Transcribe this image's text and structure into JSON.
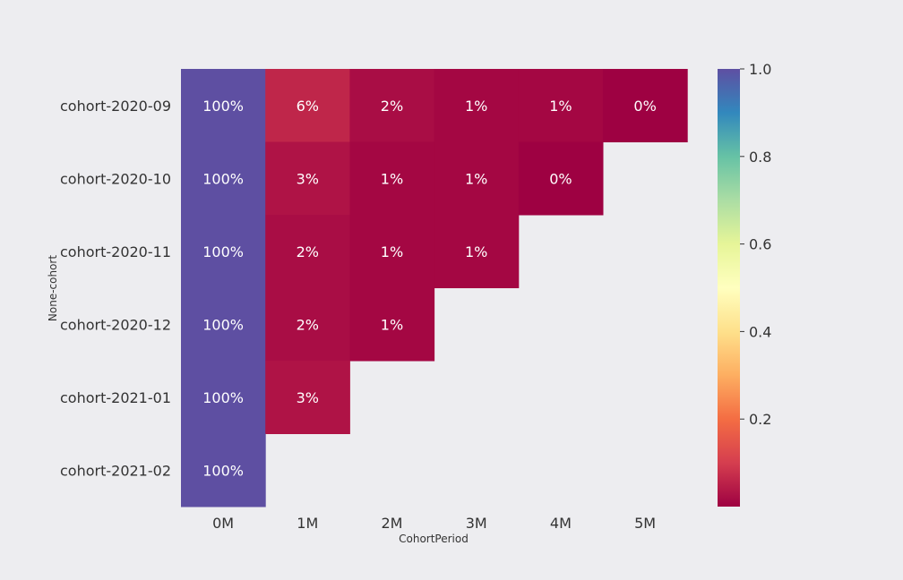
{
  "chart_data": {
    "type": "heatmap",
    "xlabel": "CohortPeriod",
    "ylabel": "None-cohort",
    "x_categories": [
      "0M",
      "1M",
      "2M",
      "3M",
      "4M",
      "5M"
    ],
    "y_categories": [
      "cohort-2020-09",
      "cohort-2020-10",
      "cohort-2020-11",
      "cohort-2020-12",
      "cohort-2021-01",
      "cohort-2021-02"
    ],
    "values": [
      [
        1.0,
        0.06,
        0.02,
        0.01,
        0.01,
        0.0
      ],
      [
        1.0,
        0.03,
        0.01,
        0.01,
        0.0,
        null
      ],
      [
        1.0,
        0.02,
        0.01,
        0.01,
        null,
        null
      ],
      [
        1.0,
        0.02,
        0.01,
        null,
        null,
        null
      ],
      [
        1.0,
        0.03,
        null,
        null,
        null,
        null
      ],
      [
        1.0,
        null,
        null,
        null,
        null,
        null
      ]
    ],
    "annotations": [
      [
        "100%",
        "6%",
        "2%",
        "1%",
        "1%",
        "0%"
      ],
      [
        "100%",
        "3%",
        "1%",
        "1%",
        "0%",
        null
      ],
      [
        "100%",
        "2%",
        "1%",
        "1%",
        null,
        null
      ],
      [
        "100%",
        "2%",
        "1%",
        null,
        null,
        null
      ],
      [
        "100%",
        "3%",
        null,
        null,
        null,
        null
      ],
      [
        "100%",
        null,
        null,
        null,
        null,
        null
      ]
    ],
    "colormap": "Spectral",
    "colorbar": {
      "range": [
        0,
        1.0
      ],
      "ticks": [
        0.2,
        0.4,
        0.6,
        0.8,
        1.0
      ],
      "tick_labels": [
        "0.2",
        "0.4",
        "0.6",
        "0.8",
        "1.0"
      ]
    },
    "grid": false
  }
}
